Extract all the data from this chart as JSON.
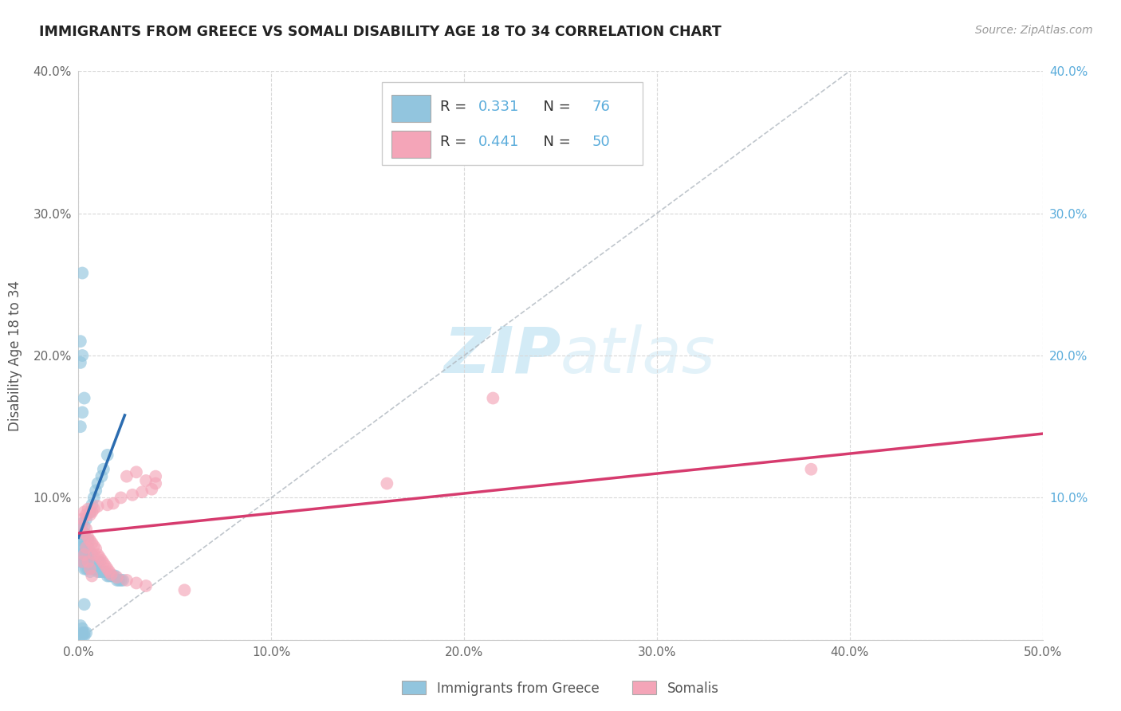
{
  "title": "IMMIGRANTS FROM GREECE VS SOMALI DISABILITY AGE 18 TO 34 CORRELATION CHART",
  "source": "Source: ZipAtlas.com",
  "ylabel": "Disability Age 18 to 34",
  "xlim": [
    0,
    0.5
  ],
  "ylim": [
    0,
    0.4
  ],
  "legend_labels": [
    "Immigrants from Greece",
    "Somalis"
  ],
  "R_greece": 0.331,
  "N_greece": 76,
  "R_somali": 0.441,
  "N_somali": 50,
  "blue_color": "#92c5de",
  "pink_color": "#f4a5b8",
  "blue_line_color": "#2b6cb0",
  "pink_line_color": "#d63b6e",
  "right_tick_color": "#5aacdb",
  "watermark_color": "#cce8f5",
  "greece_x": [
    0.001,
    0.001,
    0.001,
    0.001,
    0.002,
    0.002,
    0.002,
    0.002,
    0.002,
    0.002,
    0.003,
    0.003,
    0.003,
    0.003,
    0.003,
    0.003,
    0.003,
    0.004,
    0.004,
    0.004,
    0.004,
    0.004,
    0.005,
    0.005,
    0.005,
    0.005,
    0.005,
    0.006,
    0.006,
    0.006,
    0.006,
    0.007,
    0.007,
    0.007,
    0.007,
    0.008,
    0.008,
    0.008,
    0.009,
    0.009,
    0.01,
    0.01,
    0.01,
    0.011,
    0.011,
    0.012,
    0.012,
    0.013,
    0.013,
    0.014,
    0.015,
    0.015,
    0.016,
    0.017,
    0.018,
    0.019,
    0.02,
    0.021,
    0.022,
    0.023,
    0.001,
    0.002,
    0.003,
    0.001,
    0.002,
    0.001,
    0.002,
    0.003,
    0.001,
    0.002,
    0.004,
    0.003,
    0.002,
    0.001,
    0.003,
    0.002
  ],
  "greece_y": [
    0.055,
    0.06,
    0.065,
    0.072,
    0.055,
    0.06,
    0.065,
    0.07,
    0.075,
    0.082,
    0.05,
    0.055,
    0.06,
    0.065,
    0.07,
    0.075,
    0.08,
    0.05,
    0.055,
    0.06,
    0.065,
    0.085,
    0.05,
    0.055,
    0.06,
    0.065,
    0.07,
    0.048,
    0.055,
    0.06,
    0.09,
    0.05,
    0.055,
    0.06,
    0.095,
    0.05,
    0.055,
    0.1,
    0.05,
    0.105,
    0.048,
    0.055,
    0.11,
    0.048,
    0.055,
    0.048,
    0.115,
    0.048,
    0.12,
    0.048,
    0.045,
    0.13,
    0.045,
    0.045,
    0.045,
    0.045,
    0.042,
    0.042,
    0.042,
    0.042,
    0.15,
    0.16,
    0.17,
    0.195,
    0.2,
    0.21,
    0.258,
    0.025,
    0.01,
    0.008,
    0.005,
    0.005,
    0.005,
    0.003,
    0.003,
    0.003
  ],
  "somali_x": [
    0.001,
    0.002,
    0.003,
    0.003,
    0.004,
    0.004,
    0.005,
    0.005,
    0.006,
    0.006,
    0.007,
    0.007,
    0.008,
    0.008,
    0.009,
    0.01,
    0.01,
    0.011,
    0.012,
    0.013,
    0.014,
    0.015,
    0.015,
    0.016,
    0.017,
    0.018,
    0.02,
    0.022,
    0.025,
    0.028,
    0.03,
    0.033,
    0.035,
    0.038,
    0.04,
    0.002,
    0.003,
    0.004,
    0.005,
    0.006,
    0.007,
    0.008,
    0.025,
    0.03,
    0.035,
    0.04,
    0.215,
    0.38,
    0.16,
    0.055
  ],
  "somali_y": [
    0.08,
    0.085,
    0.075,
    0.09,
    0.078,
    0.088,
    0.072,
    0.092,
    0.07,
    0.088,
    0.068,
    0.09,
    0.066,
    0.092,
    0.064,
    0.06,
    0.094,
    0.058,
    0.056,
    0.054,
    0.052,
    0.05,
    0.095,
    0.048,
    0.046,
    0.096,
    0.044,
    0.1,
    0.042,
    0.102,
    0.04,
    0.104,
    0.038,
    0.106,
    0.11,
    0.055,
    0.06,
    0.065,
    0.055,
    0.05,
    0.045,
    0.06,
    0.115,
    0.118,
    0.112,
    0.115,
    0.17,
    0.12,
    0.11,
    0.035
  ],
  "blue_trendline_x": [
    0.0,
    0.024
  ],
  "blue_trendline_y": [
    0.072,
    0.158
  ],
  "pink_trendline_x": [
    0.0,
    0.5
  ],
  "pink_trendline_y": [
    0.075,
    0.145
  ],
  "diag_line_x": [
    0.0,
    0.4
  ],
  "diag_line_y": [
    0.0,
    0.4
  ]
}
